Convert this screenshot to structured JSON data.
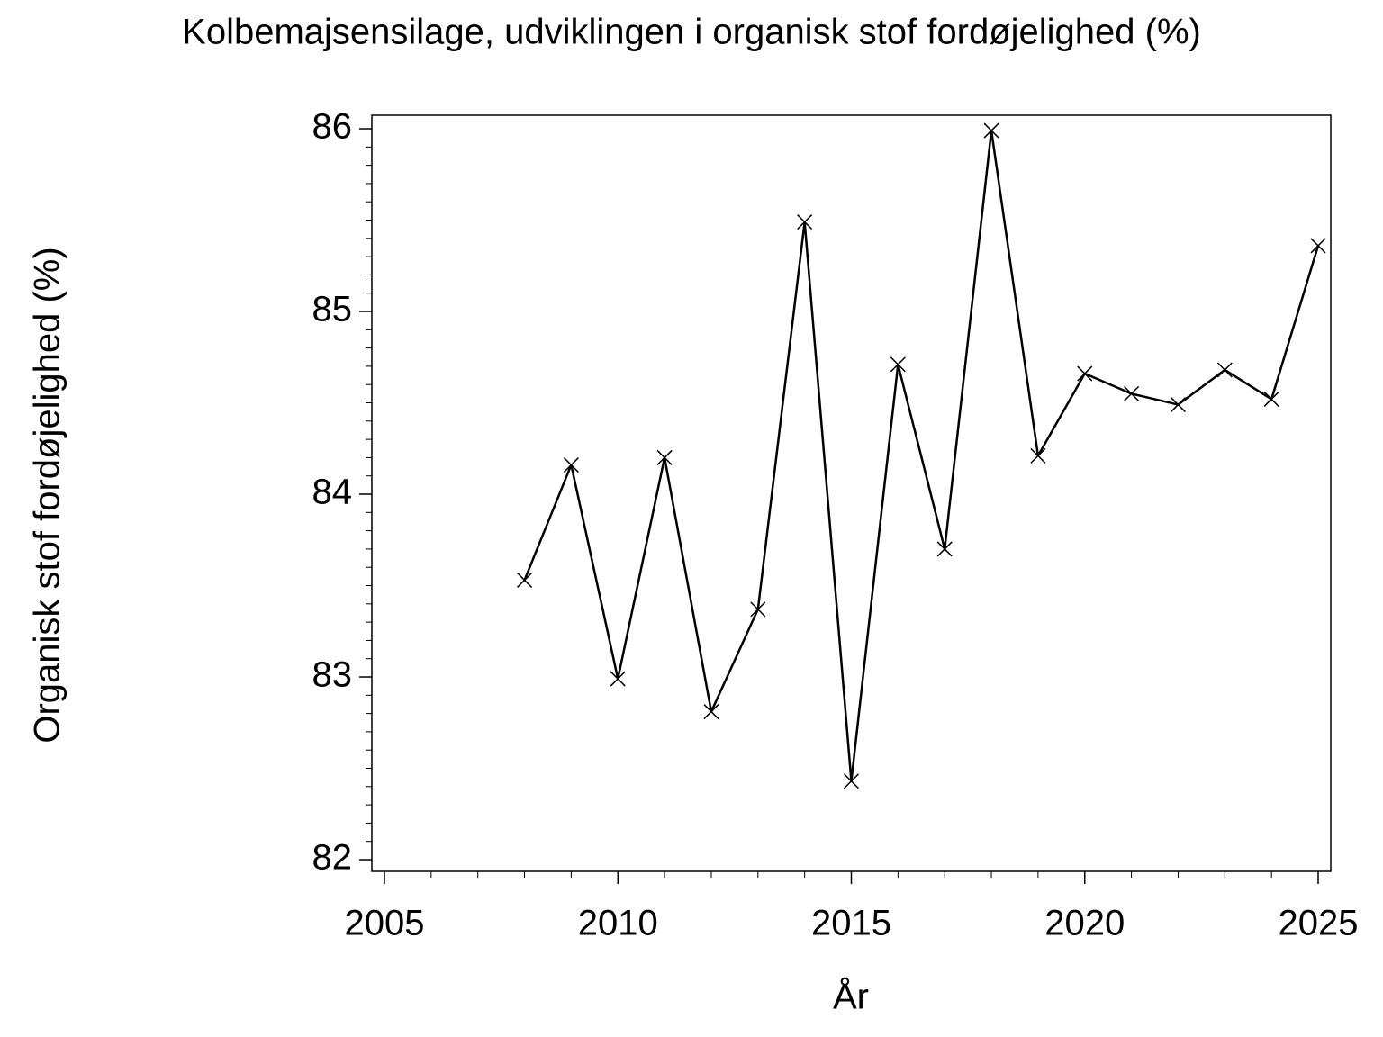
{
  "chart_data": {
    "type": "line",
    "title": "Kolbemajsensilage, udviklingen i organisk stof fordøjelighed (%)",
    "x_label": "År",
    "y_label": "Organisk stof fordøjelighed (%)",
    "x": [
      2008,
      2009,
      2010,
      2011,
      2012,
      2013,
      2014,
      2015,
      2016,
      2017,
      2018,
      2019,
      2020,
      2021,
      2022,
      2023,
      2024,
      2025
    ],
    "series": [
      {
        "color": "#000000",
        "marker": "x",
        "values": [
          83.53,
          84.16,
          82.99,
          84.2,
          82.81,
          83.37,
          85.49,
          82.43,
          84.71,
          83.7,
          85.99,
          84.21,
          84.66,
          84.55,
          84.49,
          84.68,
          84.52,
          85.36
        ]
      }
    ],
    "xlim": [
      2004.73,
      2025.27
    ],
    "ylim": [
      81.936,
      86.074
    ],
    "xticks": [
      2005,
      2010,
      2015,
      2020,
      2025
    ],
    "yticks": [
      82,
      83,
      84,
      85,
      86
    ],
    "grid": false
  }
}
